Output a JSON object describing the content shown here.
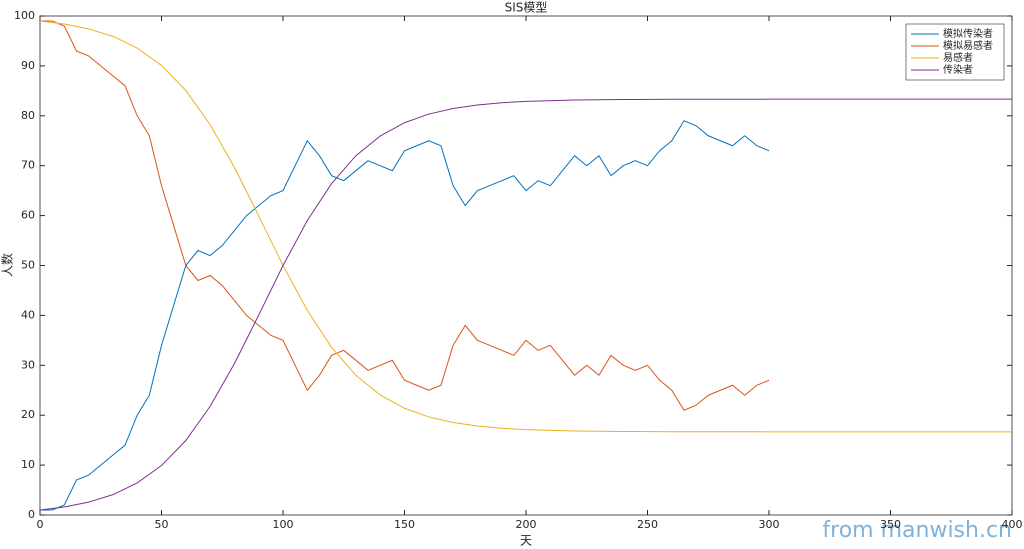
{
  "chart_data": {
    "type": "line",
    "title": "SIS模型",
    "x_label": "天",
    "y_label": "人数",
    "xlim": [
      0,
      400
    ],
    "ylim": [
      0,
      100
    ],
    "xticks": [
      0,
      50,
      100,
      150,
      200,
      250,
      300,
      350,
      400
    ],
    "yticks": [
      0,
      10,
      20,
      30,
      40,
      50,
      60,
      70,
      80,
      90,
      100
    ],
    "legend": "top-right",
    "watermark": "from manwish.cn",
    "series": [
      {
        "name": "模拟传染者",
        "color": "#0072BD",
        "x": [
          0,
          5,
          10,
          15,
          20,
          25,
          30,
          35,
          40,
          45,
          50,
          55,
          60,
          65,
          70,
          75,
          80,
          85,
          90,
          95,
          100,
          105,
          110,
          115,
          120,
          125,
          130,
          135,
          140,
          145,
          150,
          155,
          160,
          165,
          170,
          175,
          180,
          185,
          190,
          195,
          200,
          205,
          210,
          215,
          220,
          225,
          230,
          235,
          240,
          245,
          250,
          255,
          260,
          265,
          270,
          275,
          280,
          285,
          290,
          295,
          300
        ],
        "values": [
          1,
          1,
          2,
          7,
          8,
          10,
          12,
          14,
          20,
          24,
          34,
          42,
          50,
          53,
          52,
          54,
          57,
          60,
          62,
          64,
          65,
          70,
          75,
          72,
          68,
          67,
          69,
          71,
          70,
          69,
          73,
          74,
          75,
          74,
          66,
          62,
          65,
          66,
          67,
          68,
          65,
          67,
          66,
          69,
          72,
          70,
          72,
          68,
          70,
          71,
          70,
          73,
          75,
          79,
          78,
          76,
          75,
          74,
          76,
          74,
          73
        ]
      },
      {
        "name": "模拟易感者",
        "color": "#D95319",
        "x": [
          0,
          5,
          10,
          15,
          20,
          25,
          30,
          35,
          40,
          45,
          50,
          55,
          60,
          65,
          70,
          75,
          80,
          85,
          90,
          95,
          100,
          105,
          110,
          115,
          120,
          125,
          130,
          135,
          140,
          145,
          150,
          155,
          160,
          165,
          170,
          175,
          180,
          185,
          190,
          195,
          200,
          205,
          210,
          215,
          220,
          225,
          230,
          235,
          240,
          245,
          250,
          255,
          260,
          265,
          270,
          275,
          280,
          285,
          290,
          295,
          300
        ],
        "values": [
          99,
          99,
          98,
          93,
          92,
          90,
          88,
          86,
          80,
          76,
          66,
          58,
          50,
          47,
          48,
          46,
          43,
          40,
          38,
          36,
          35,
          30,
          25,
          28,
          32,
          33,
          31,
          29,
          30,
          31,
          27,
          26,
          25,
          26,
          34,
          38,
          35,
          34,
          33,
          32,
          35,
          33,
          34,
          31,
          28,
          30,
          28,
          32,
          30,
          29,
          30,
          27,
          25,
          21,
          22,
          24,
          25,
          26,
          24,
          26,
          27
        ]
      },
      {
        "name": "易感者",
        "color": "#EDB120",
        "x": [
          0,
          10,
          20,
          30,
          40,
          50,
          60,
          70,
          80,
          90,
          100,
          110,
          120,
          130,
          140,
          150,
          160,
          170,
          180,
          190,
          200,
          220,
          240,
          260,
          280,
          300,
          320,
          340,
          360,
          380,
          400
        ],
        "values": [
          99,
          98.39,
          97.43,
          95.92,
          93.58,
          90.09,
          85.07,
          78.23,
          69.67,
          59.93,
          50,
          41,
          33.58,
          28,
          24.05,
          21.39,
          19.65,
          18.53,
          17.83,
          17.39,
          17.12,
          16.84,
          16.74,
          16.69,
          16.68,
          16.67,
          16.67,
          16.67,
          16.67,
          16.67,
          16.67
        ]
      },
      {
        "name": "传染者",
        "color": "#7E2F8E",
        "x": [
          0,
          10,
          20,
          30,
          40,
          50,
          60,
          70,
          80,
          90,
          100,
          110,
          120,
          130,
          140,
          150,
          160,
          170,
          180,
          190,
          200,
          220,
          240,
          260,
          280,
          300,
          320,
          340,
          360,
          380,
          400
        ],
        "values": [
          1,
          1.61,
          2.57,
          4.08,
          6.42,
          9.91,
          14.93,
          21.77,
          30.33,
          40.07,
          50,
          59,
          66.42,
          72,
          75.95,
          78.61,
          80.35,
          81.47,
          82.17,
          82.61,
          82.88,
          83.16,
          83.26,
          83.31,
          83.32,
          83.33,
          83.33,
          83.33,
          83.33,
          83.33,
          83.33
        ]
      }
    ]
  }
}
